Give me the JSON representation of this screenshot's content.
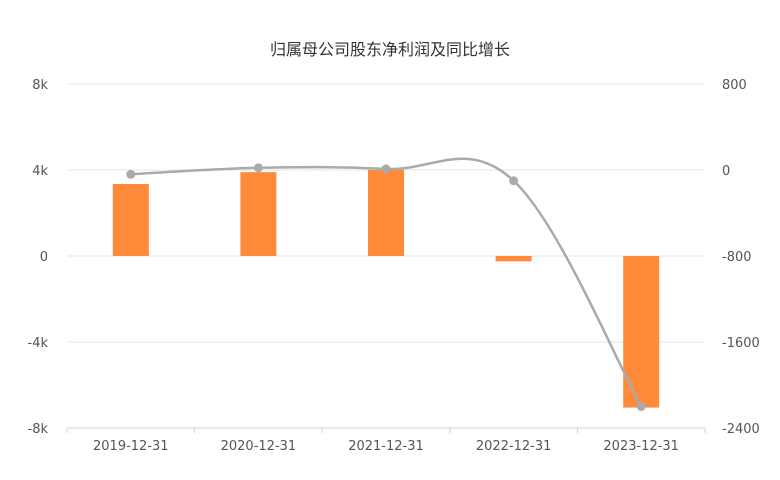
{
  "chart_data": {
    "type": "bar",
    "title": "归属母公司股东净利润及同比增长",
    "categories": [
      "2019-12-31",
      "2020-12-31",
      "2021-12-31",
      "2022-12-31",
      "2023-12-31"
    ],
    "series": [
      {
        "type": "bar",
        "axis": "left",
        "values": [
          3350,
          3900,
          4000,
          -250,
          -7050
        ]
      },
      {
        "type": "line",
        "axis": "right",
        "values": [
          -40,
          20,
          10,
          -100,
          -2200
        ]
      }
    ],
    "left_axis": {
      "min": -8000,
      "max": 8000,
      "ticks": [
        8000,
        4000,
        0,
        -4000,
        -8000
      ],
      "tick_labels": [
        "8k",
        "4k",
        "0",
        "-4k",
        "-8k"
      ]
    },
    "right_axis": {
      "min": -2400,
      "max": 800,
      "ticks": [
        800,
        0,
        -800,
        -1600,
        -2400
      ],
      "tick_labels": [
        "800",
        "0",
        "-800",
        "-1600",
        "-2400"
      ]
    },
    "grid": true,
    "legend": "none",
    "colors": {
      "bar": "#ff8b3a",
      "line": "#aaaaaa",
      "grid": "#e6e6e6",
      "axis": "#c8d3e0"
    }
  }
}
